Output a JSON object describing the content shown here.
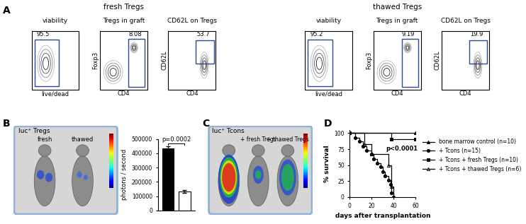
{
  "figure": {
    "panel_labels": [
      "A",
      "B",
      "C",
      "D"
    ],
    "A": {
      "groups": [
        {
          "title": "fresh Tregs",
          "plots": [
            {
              "title": "viability",
              "xlabel": "live/dead",
              "gate": 95.5
            },
            {
              "title": "Tregs in graft",
              "xlabel": "CD4",
              "ylabel": "Foxp3",
              "gate": 8.08
            },
            {
              "title": "CD62L on Tregs",
              "xlabel": "CD4",
              "ylabel": "CD62L",
              "gate": 53.7
            }
          ]
        },
        {
          "title": "thawed Tregs",
          "plots": [
            {
              "title": "viability",
              "xlabel": "live/dead",
              "gate": 95.2
            },
            {
              "title": "Tregs in graft",
              "xlabel": "CD4",
              "ylabel": "Foxp3",
              "gate": 9.19
            },
            {
              "title": "CD62L on Tregs",
              "xlabel": "CD4",
              "ylabel": "CD62L",
              "gate": 19.9
            }
          ]
        }
      ]
    },
    "B": {
      "image": {
        "title": "luc⁺ Tregs",
        "labels": [
          "fresh",
          "thawed"
        ]
      }
    },
    "C": {
      "image": {
        "title": "luc⁺ Tcons",
        "labels": [
          null,
          "+ fresh Tregs",
          "+ thawed Tregs"
        ]
      }
    }
  },
  "chart_data": [
    {
      "type": "bar",
      "categories": [
        null,
        null
      ],
      "values": [
        435000,
        135000
      ],
      "errors": [
        15000,
        10000
      ],
      "colors": [
        "#000000",
        "#ffffff"
      ],
      "ylabel": "photons / second",
      "annotation": "p=0.0002",
      "ylim": [
        0,
        500000
      ],
      "yticks": [
        0,
        100000,
        200000,
        300000,
        400000,
        500000
      ]
    },
    {
      "type": "line",
      "line_style": "steps",
      "xlabel": "days after transplantation",
      "ylabel": "% survival",
      "annotation": "p<0.0001",
      "legend": "center left",
      "xlim": [
        0,
        60
      ],
      "xticks": [
        0,
        20,
        40,
        60
      ],
      "ylim": [
        0,
        105
      ],
      "yticks": [
        0,
        25,
        50,
        75,
        100
      ],
      "series": [
        {
          "name": "bone marrow control (n=10)",
          "color": "#000000",
          "marker": "triangle",
          "x": [
            0,
            60
          ],
          "values": [
            100,
            100
          ]
        },
        {
          "name": "+ Tcons (n=15)",
          "color": "#000000",
          "marker": "circle",
          "x": [
            0,
            5,
            9,
            12,
            15,
            20,
            22,
            25,
            28,
            30,
            32,
            35,
            37,
            38,
            40
          ],
          "values": [
            100,
            93,
            87,
            80,
            73,
            67,
            60,
            53,
            47,
            40,
            33,
            27,
            20,
            7,
            0
          ]
        },
        {
          "name": "+ Tcons + fresh Tregs (n=10)",
          "color": "#000000",
          "marker": "square",
          "x": [
            0,
            38,
            60
          ],
          "values": [
            100,
            90,
            90
          ]
        },
        {
          "name": "+ Tcons + thawed Tregs (n=6)",
          "color": "#000000",
          "marker": "open triangle",
          "x": [
            0,
            13,
            20,
            35,
            38,
            40
          ],
          "values": [
            100,
            83,
            67,
            50,
            17,
            0
          ]
        }
      ]
    }
  ]
}
